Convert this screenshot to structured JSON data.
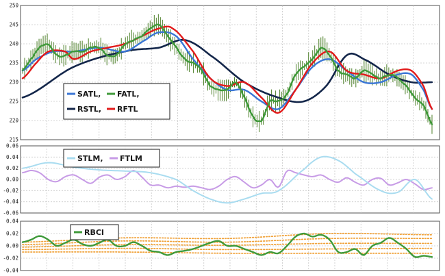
{
  "colors": {
    "satl": "#3a76d6",
    "fatl": "#3f9a3a",
    "rstl": "#13264a",
    "rftl": "#e21a1a",
    "stlm": "#a9dcf0",
    "ftlm": "#c79be6",
    "rbci": "#3f9a3a",
    "bands": "#f0a23a",
    "price_bars": "#4c7f28",
    "grid": "#c8c8c8",
    "frame": "#505050"
  },
  "chart_data": [
    {
      "type": "line",
      "panel": "price",
      "ylim": [
        215,
        250
      ],
      "yticks": [
        "250",
        "245",
        "240",
        "235",
        "230",
        "225",
        "220",
        "215"
      ],
      "legend_placement": "bottom-left",
      "grid": true,
      "x_count": 200,
      "series": [
        {
          "name": "SATL",
          "anchors": [
            [
              0,
              233
            ],
            [
              8,
              236
            ],
            [
              18,
              238
            ],
            [
              30,
              238
            ],
            [
              45,
              239
            ],
            [
              60,
              238
            ],
            [
              72,
              241
            ],
            [
              80,
              243
            ],
            [
              90,
              242
            ],
            [
              100,
              236
            ],
            [
              110,
              231
            ],
            [
              120,
              228
            ],
            [
              130,
              228
            ],
            [
              140,
              225
            ],
            [
              150,
              223
            ],
            [
              160,
              228
            ],
            [
              170,
              234
            ],
            [
              180,
              236
            ],
            [
              190,
              233
            ],
            [
              200,
              230
            ],
            [
              210,
              230
            ],
            [
              220,
              232
            ],
            [
              228,
              232
            ],
            [
              235,
              228
            ],
            [
              240,
              223
            ]
          ]
        },
        {
          "name": "FATL",
          "anchors": [
            [
              0,
              233
            ],
            [
              5,
              236
            ],
            [
              10,
              239
            ],
            [
              15,
              240
            ],
            [
              20,
              237
            ],
            [
              25,
              237
            ],
            [
              30,
              238
            ],
            [
              35,
              238
            ],
            [
              40,
              239
            ],
            [
              45,
              239
            ],
            [
              50,
              237
            ],
            [
              55,
              237
            ],
            [
              60,
              240
            ],
            [
              65,
              241
            ],
            [
              70,
              242
            ],
            [
              75,
              244
            ],
            [
              80,
              245
            ],
            [
              85,
              242
            ],
            [
              90,
              239
            ],
            [
              95,
              236
            ],
            [
              100,
              235
            ],
            [
              105,
              233
            ],
            [
              110,
              229
            ],
            [
              115,
              228
            ],
            [
              120,
              228
            ],
            [
              125,
              230
            ],
            [
              130,
              226
            ],
            [
              135,
              221
            ],
            [
              140,
              220
            ],
            [
              145,
              225
            ],
            [
              150,
              225
            ],
            [
              155,
              227
            ],
            [
              160,
              232
            ],
            [
              165,
              234
            ],
            [
              170,
              236
            ],
            [
              175,
              239
            ],
            [
              180,
              237
            ],
            [
              185,
              233
            ],
            [
              190,
              232
            ],
            [
              195,
              231
            ],
            [
              200,
              233
            ],
            [
              205,
              232
            ],
            [
              210,
              231
            ],
            [
              215,
              232
            ],
            [
              220,
              231
            ],
            [
              225,
              229
            ],
            [
              230,
              226
            ],
            [
              235,
              224
            ],
            [
              240,
              219
            ]
          ]
        },
        {
          "name": "RSTL",
          "anchors": [
            [
              0,
              226
            ],
            [
              30,
              234
            ],
            [
              60,
              238
            ],
            [
              80,
              239
            ],
            [
              95,
              241
            ],
            [
              110,
              237
            ],
            [
              130,
              230
            ],
            [
              150,
              226
            ],
            [
              165,
              225
            ],
            [
              178,
              229
            ],
            [
              190,
              237
            ],
            [
              200,
              236
            ],
            [
              215,
              232
            ],
            [
              228,
              230
            ],
            [
              240,
              230
            ]
          ]
        },
        {
          "name": "RFTL",
          "anchors": [
            [
              0,
              231
            ],
            [
              8,
              235
            ],
            [
              15,
              238
            ],
            [
              25,
              238
            ],
            [
              30,
              236
            ],
            [
              40,
              238
            ],
            [
              50,
              239
            ],
            [
              60,
              240
            ],
            [
              70,
              242
            ],
            [
              80,
              244
            ],
            [
              88,
              244
            ],
            [
              100,
              238
            ],
            [
              110,
              231
            ],
            [
              120,
              229
            ],
            [
              130,
              230
            ],
            [
              140,
              226
            ],
            [
              150,
              222
            ],
            [
              160,
              228
            ],
            [
              170,
              235
            ],
            [
              180,
              238
            ],
            [
              190,
              233
            ],
            [
              200,
              232
            ],
            [
              210,
              231
            ],
            [
              220,
              233
            ],
            [
              228,
              233
            ],
            [
              235,
              229
            ],
            [
              240,
              223
            ]
          ]
        }
      ]
    },
    {
      "type": "line",
      "panel": "momentum",
      "ylim": [
        -0.06,
        0.06
      ],
      "yticks": [
        "0.06",
        "0.04",
        "0.02",
        "0.00",
        "-0.02",
        "-0.04",
        "-0.06"
      ],
      "legend_placement": "top-left",
      "grid": true,
      "x_count": 200,
      "series": [
        {
          "name": "STLM",
          "anchors": [
            [
              0,
              0.02
            ],
            [
              15,
              0.03
            ],
            [
              30,
              0.022
            ],
            [
              45,
              0.017
            ],
            [
              60,
              0.015
            ],
            [
              75,
              0.012
            ],
            [
              90,
              0.0
            ],
            [
              100,
              -0.02
            ],
            [
              110,
              -0.035
            ],
            [
              120,
              -0.042
            ],
            [
              130,
              -0.035
            ],
            [
              140,
              -0.025
            ],
            [
              150,
              -0.02
            ],
            [
              165,
              0.018
            ],
            [
              175,
              0.04
            ],
            [
              185,
              0.034
            ],
            [
              195,
              0.01
            ],
            [
              210,
              -0.02
            ],
            [
              220,
              -0.023
            ],
            [
              230,
              0.0
            ],
            [
              240,
              -0.035
            ]
          ]
        },
        {
          "name": "FTLM",
          "anchors": [
            [
              0,
              0.012
            ],
            [
              5,
              0.016
            ],
            [
              10,
              0.012
            ],
            [
              15,
              0.0
            ],
            [
              20,
              -0.004
            ],
            [
              25,
              0.005
            ],
            [
              30,
              0.008
            ],
            [
              35,
              0.0
            ],
            [
              40,
              -0.007
            ],
            [
              45,
              0.004
            ],
            [
              50,
              0.008
            ],
            [
              55,
              0.0
            ],
            [
              60,
              0.005
            ],
            [
              65,
              0.016
            ],
            [
              70,
              0.004
            ],
            [
              75,
              -0.01
            ],
            [
              80,
              -0.01
            ],
            [
              85,
              -0.015
            ],
            [
              90,
              -0.012
            ],
            [
              95,
              -0.014
            ],
            [
              100,
              -0.012
            ],
            [
              105,
              -0.015
            ],
            [
              110,
              -0.018
            ],
            [
              115,
              -0.012
            ],
            [
              120,
              0.0
            ],
            [
              125,
              0.005
            ],
            [
              130,
              -0.005
            ],
            [
              135,
              -0.015
            ],
            [
              140,
              -0.01
            ],
            [
              145,
              0.0
            ],
            [
              150,
              -0.014
            ],
            [
              155,
              0.015
            ],
            [
              160,
              0.012
            ],
            [
              165,
              0.008
            ],
            [
              170,
              0.005
            ],
            [
              175,
              0.008
            ],
            [
              180,
              0.0
            ],
            [
              185,
              -0.005
            ],
            [
              190,
              0.003
            ],
            [
              195,
              -0.005
            ],
            [
              200,
              -0.01
            ],
            [
              205,
              0.0
            ],
            [
              210,
              0.002
            ],
            [
              215,
              -0.01
            ],
            [
              220,
              -0.006
            ],
            [
              225,
              0.0
            ],
            [
              230,
              -0.008
            ],
            [
              235,
              -0.018
            ],
            [
              240,
              -0.015
            ]
          ]
        }
      ]
    },
    {
      "type": "line",
      "panel": "rbci",
      "ylim": [
        -0.04,
        0.04
      ],
      "yticks": [
        "0.04",
        "0.02",
        "0.00",
        "-0.02",
        "-0.04"
      ],
      "legend_placement": "top-left",
      "grid": true,
      "x_count": 200,
      "series": [
        {
          "name": "RBCI",
          "anchors": [
            [
              0,
              0.006
            ],
            [
              5,
              0.01
            ],
            [
              10,
              0.016
            ],
            [
              15,
              0.01
            ],
            [
              20,
              0.0
            ],
            [
              25,
              0.005
            ],
            [
              30,
              0.01
            ],
            [
              35,
              0.003
            ],
            [
              40,
              0.0
            ],
            [
              45,
              0.005
            ],
            [
              50,
              0.01
            ],
            [
              55,
              0.0
            ],
            [
              60,
              0.0
            ],
            [
              65,
              0.006
            ],
            [
              70,
              0.0
            ],
            [
              75,
              -0.008
            ],
            [
              80,
              -0.01
            ],
            [
              85,
              -0.015
            ],
            [
              90,
              -0.01
            ],
            [
              95,
              -0.008
            ],
            [
              100,
              -0.005
            ],
            [
              105,
              0.0
            ],
            [
              110,
              0.005
            ],
            [
              115,
              0.008
            ],
            [
              120,
              0.0
            ],
            [
              125,
              0.0
            ],
            [
              130,
              -0.005
            ],
            [
              135,
              -0.01
            ],
            [
              140,
              -0.015
            ],
            [
              145,
              -0.01
            ],
            [
              150,
              -0.012
            ],
            [
              155,
              0.0
            ],
            [
              160,
              0.015
            ],
            [
              165,
              0.02
            ],
            [
              170,
              0.015
            ],
            [
              175,
              0.018
            ],
            [
              180,
              0.01
            ],
            [
              185,
              -0.01
            ],
            [
              190,
              -0.01
            ],
            [
              195,
              -0.005
            ],
            [
              200,
              -0.015
            ],
            [
              205,
              0.0
            ],
            [
              210,
              0.005
            ],
            [
              215,
              0.013
            ],
            [
              220,
              0.005
            ],
            [
              225,
              -0.005
            ],
            [
              230,
              -0.018
            ],
            [
              235,
              -0.016
            ],
            [
              240,
              -0.018
            ]
          ]
        },
        {
          "name": "",
          "style": "dotted",
          "anchors": [
            [
              0,
              0.006
            ],
            [
              60,
              0.013
            ],
            [
              120,
              0.012
            ],
            [
              180,
              0.02
            ],
            [
              240,
              0.018
            ]
          ]
        },
        {
          "name": "",
          "style": "dotted",
          "anchors": [
            [
              0,
              0.002
            ],
            [
              60,
              0.008
            ],
            [
              120,
              0.006
            ],
            [
              180,
              0.012
            ],
            [
              240,
              0.012
            ]
          ]
        },
        {
          "name": "",
          "style": "dotted",
          "anchors": [
            [
              0,
              -0.002
            ],
            [
              60,
              0.002
            ],
            [
              120,
              0.001
            ],
            [
              180,
              0.004
            ],
            [
              240,
              0.004
            ]
          ]
        },
        {
          "name": "",
          "style": "dotted",
          "anchors": [
            [
              0,
              -0.006
            ],
            [
              60,
              -0.004
            ],
            [
              120,
              -0.006
            ],
            [
              180,
              -0.005
            ],
            [
              240,
              -0.004
            ]
          ]
        },
        {
          "name": "",
          "style": "dotted",
          "anchors": [
            [
              0,
              -0.01
            ],
            [
              60,
              -0.01
            ],
            [
              120,
              -0.012
            ],
            [
              180,
              -0.012
            ],
            [
              240,
              -0.012
            ]
          ]
        }
      ]
    }
  ]
}
